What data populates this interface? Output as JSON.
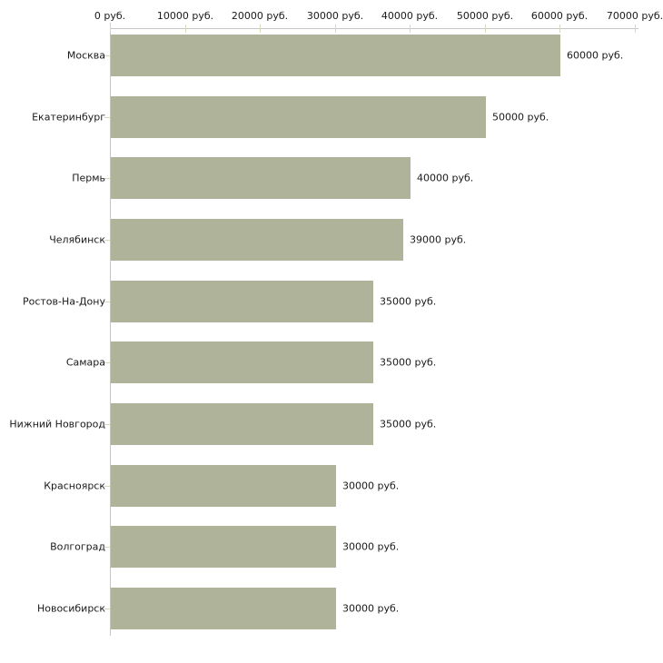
{
  "chart_data": {
    "type": "bar",
    "orientation": "horizontal",
    "unit": "руб.",
    "categories": [
      "Москва",
      "Екатеринбург",
      "Пермь",
      "Челябинск",
      "Ростов-На-Дону",
      "Самара",
      "Нижний Новгород",
      "Красноярск",
      "Волгоград",
      "Новосибирск"
    ],
    "values": [
      60000,
      50000,
      40000,
      39000,
      35000,
      35000,
      35000,
      30000,
      30000,
      30000
    ],
    "value_labels": [
      "60000 руб.",
      "50000 руб.",
      "40000 руб.",
      "39000 руб.",
      "35000 руб.",
      "35000 руб.",
      "35000 руб.",
      "30000 руб.",
      "30000 руб.",
      "30000 руб."
    ],
    "x_axis": {
      "position": "top",
      "min": 0,
      "max": 70000,
      "tick_step": 10000,
      "ticks": [
        0,
        10000,
        20000,
        30000,
        40000,
        50000,
        60000,
        70000
      ],
      "tick_labels": [
        "0 руб.",
        "10000 руб.",
        "20000 руб.",
        "30000 руб.",
        "40000 руб.",
        "50000 руб.",
        "60000 руб.",
        "70000 руб."
      ]
    },
    "grid": false,
    "legend": "none",
    "colors": {
      "bar": "#aeb399",
      "axis_line": "#c6c6c6",
      "tick_mark": "#d6d8b8",
      "label_text": "#1a1a1a",
      "background": "#ffffff"
    }
  }
}
